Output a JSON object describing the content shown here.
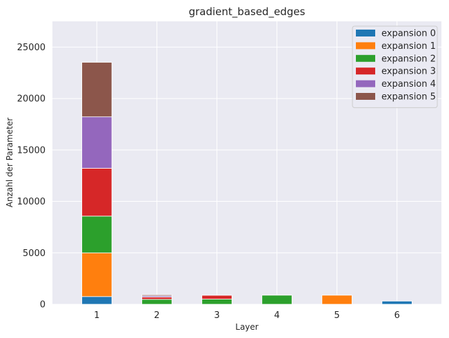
{
  "chart_data": {
    "type": "bar",
    "stacked": true,
    "title": "gradient_based_edges",
    "xlabel": "Layer",
    "ylabel": "Anzahl der Parameter",
    "categories": [
      "1",
      "2",
      "3",
      "4",
      "5",
      "6"
    ],
    "ylim": [
      0,
      27500
    ],
    "yticks": [
      0,
      5000,
      10000,
      15000,
      20000,
      25000
    ],
    "grid": true,
    "legend_position": "top-right",
    "series": [
      {
        "name": "expansion 0",
        "color": "#1f77b4",
        "values": [
          750,
          0,
          0,
          0,
          0,
          310
        ]
      },
      {
        "name": "expansion 1",
        "color": "#ff7f0e",
        "values": [
          4250,
          0,
          0,
          0,
          880,
          0
        ]
      },
      {
        "name": "expansion 2",
        "color": "#2ca02c",
        "values": [
          3570,
          480,
          500,
          880,
          0,
          0
        ]
      },
      {
        "name": "expansion 3",
        "color": "#d62728",
        "values": [
          4650,
          220,
          370,
          0,
          0,
          0
        ]
      },
      {
        "name": "expansion 4",
        "color": "#9467bd",
        "values": [
          5000,
          120,
          0,
          0,
          0,
          0
        ]
      },
      {
        "name": "expansion 5",
        "color": "#8c564b",
        "values": [
          5300,
          100,
          0,
          0,
          0,
          0
        ]
      }
    ]
  }
}
